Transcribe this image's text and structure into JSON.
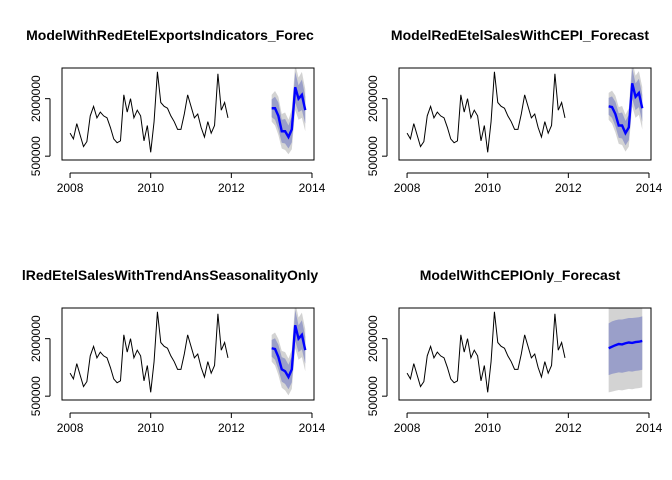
{
  "chart_data": [
    {
      "type": "line",
      "title": "ModelWithRedEtelExportsIndicators_Forec",
      "xlabel": "",
      "ylabel": "",
      "xlim": [
        2007.8,
        2014.05
      ],
      "ylim": [
        400000,
        2800000
      ],
      "x_ticks": [
        2008,
        2010,
        2012,
        2014
      ],
      "y_ticks": [
        500000,
        2000000
      ],
      "y_tick_labels": [
        "500000",
        "2000000"
      ],
      "history_start": 2008.0,
      "history_step": 0.0833333,
      "history": [
        1100000,
        950000,
        1350000,
        1050000,
        750000,
        880000,
        1550000,
        1800000,
        1500000,
        1650000,
        1550000,
        1500000,
        1250000,
        950000,
        850000,
        900000,
        2100000,
        1650000,
        2000000,
        1500000,
        1700000,
        1550000,
        900000,
        1300000,
        600000,
        1400000,
        2700000,
        1900000,
        1800000,
        1750000,
        1550000,
        1400000,
        1200000,
        1200000,
        1600000,
        2100000,
        1800000,
        1500000,
        1600000,
        1250000,
        1000000,
        1400000,
        1100000,
        1300000,
        2650000,
        1700000,
        1900000,
        1500000
      ],
      "forecast_start": 2013.0,
      "forecast_step": 0.0833333,
      "forecast": [
        1750000,
        1750000,
        1550000,
        1150000,
        1150000,
        1000000,
        1200000,
        2300000,
        2000000,
        2100000,
        1700000
      ],
      "lower80": [
        1520000,
        1450000,
        1200000,
        850000,
        830000,
        700000,
        860000,
        1900000,
        1650000,
        1700000,
        1350000
      ],
      "upper80": [
        1980000,
        2050000,
        1900000,
        1450000,
        1470000,
        1300000,
        1540000,
        2700000,
        2350000,
        2500000,
        2050000
      ],
      "lower95": [
        1400000,
        1300000,
        1050000,
        700000,
        660000,
        550000,
        680000,
        1700000,
        1450000,
        1500000,
        1150000
      ],
      "upper95": [
        2100000,
        2200000,
        2050000,
        1600000,
        1640000,
        1450000,
        1720000,
        2900000,
        2550000,
        2700000,
        2250000
      ]
    },
    {
      "type": "line",
      "title": "ModelRedEtelSalesWithCEPI_Forecast",
      "xlabel": "",
      "ylabel": "",
      "xlim": [
        2007.8,
        2014.05
      ],
      "ylim": [
        400000,
        2800000
      ],
      "x_ticks": [
        2008,
        2010,
        2012,
        2014
      ],
      "y_ticks": [
        500000,
        2000000
      ],
      "y_tick_labels": [
        "500000",
        "2000000"
      ],
      "history_start": 2008.0,
      "history_step": 0.0833333,
      "history": [
        1100000,
        950000,
        1350000,
        1050000,
        750000,
        880000,
        1550000,
        1800000,
        1500000,
        1650000,
        1550000,
        1500000,
        1250000,
        950000,
        850000,
        900000,
        2100000,
        1650000,
        2000000,
        1500000,
        1700000,
        1550000,
        900000,
        1300000,
        600000,
        1400000,
        2700000,
        1900000,
        1800000,
        1750000,
        1550000,
        1400000,
        1200000,
        1200000,
        1600000,
        2100000,
        1800000,
        1500000,
        1600000,
        1250000,
        1000000,
        1400000,
        1100000,
        1300000,
        2650000,
        1700000,
        1900000,
        1500000
      ],
      "forecast_start": 2013.0,
      "forecast_step": 0.0833333,
      "forecast": [
        1800000,
        1780000,
        1600000,
        1300000,
        1300000,
        1100000,
        1250000,
        2400000,
        2050000,
        2150000,
        1750000
      ],
      "lower80": [
        1580000,
        1500000,
        1280000,
        980000,
        960000,
        780000,
        920000,
        2000000,
        1700000,
        1780000,
        1400000
      ],
      "upper80": [
        2020000,
        2060000,
        1920000,
        1620000,
        1640000,
        1420000,
        1580000,
        2800000,
        2400000,
        2520000,
        2100000
      ],
      "lower95": [
        1450000,
        1350000,
        1120000,
        820000,
        790000,
        620000,
        750000,
        1800000,
        1500000,
        1580000,
        1200000
      ],
      "upper95": [
        2150000,
        2210000,
        2080000,
        1780000,
        1810000,
        1580000,
        1750000,
        3000000,
        2600000,
        2720000,
        2300000
      ]
    },
    {
      "type": "line",
      "title": "lRedEtelSalesWithTrendAnsSeasonalityOnly",
      "xlabel": "",
      "ylabel": "",
      "xlim": [
        2007.8,
        2014.05
      ],
      "ylim": [
        400000,
        2800000
      ],
      "x_ticks": [
        2008,
        2010,
        2012,
        2014
      ],
      "y_ticks": [
        500000,
        2000000
      ],
      "y_tick_labels": [
        "500000",
        "2000000"
      ],
      "history_start": 2008.0,
      "history_step": 0.0833333,
      "history": [
        1100000,
        950000,
        1350000,
        1050000,
        750000,
        880000,
        1550000,
        1800000,
        1500000,
        1650000,
        1550000,
        1500000,
        1250000,
        950000,
        850000,
        900000,
        2100000,
        1650000,
        2000000,
        1500000,
        1700000,
        1550000,
        900000,
        1300000,
        600000,
        1400000,
        2700000,
        1900000,
        1800000,
        1750000,
        1550000,
        1400000,
        1200000,
        1200000,
        1600000,
        2100000,
        1800000,
        1500000,
        1600000,
        1250000,
        1000000,
        1400000,
        1100000,
        1300000,
        2650000,
        1700000,
        1900000,
        1500000
      ],
      "forecast_start": 2013.0,
      "forecast_step": 0.0833333,
      "forecast": [
        1750000,
        1730000,
        1520000,
        1200000,
        1150000,
        1000000,
        1200000,
        2350000,
        2000000,
        2100000,
        1700000
      ],
      "lower80": [
        1530000,
        1450000,
        1200000,
        880000,
        820000,
        680000,
        860000,
        1950000,
        1650000,
        1720000,
        1350000
      ],
      "upper80": [
        1970000,
        2010000,
        1840000,
        1520000,
        1480000,
        1320000,
        1540000,
        2750000,
        2350000,
        2480000,
        2050000
      ],
      "lower95": [
        1400000,
        1300000,
        1050000,
        720000,
        650000,
        520000,
        690000,
        1750000,
        1450000,
        1520000,
        1150000
      ],
      "upper95": [
        2100000,
        2160000,
        1990000,
        1680000,
        1650000,
        1480000,
        1710000,
        2950000,
        2550000,
        2680000,
        2250000
      ]
    },
    {
      "type": "line",
      "title": "ModelWithCEPIOnly_Forecast",
      "xlabel": "",
      "ylabel": "",
      "xlim": [
        2007.8,
        2014.05
      ],
      "ylim": [
        400000,
        2800000
      ],
      "x_ticks": [
        2008,
        2010,
        2012,
        2014
      ],
      "y_ticks": [
        500000,
        2000000
      ],
      "y_tick_labels": [
        "500000",
        "2000000"
      ],
      "history_start": 2008.0,
      "history_step": 0.0833333,
      "history": [
        1100000,
        950000,
        1350000,
        1050000,
        750000,
        880000,
        1550000,
        1800000,
        1500000,
        1650000,
        1550000,
        1500000,
        1250000,
        950000,
        850000,
        900000,
        2100000,
        1650000,
        2000000,
        1500000,
        1700000,
        1550000,
        900000,
        1300000,
        600000,
        1400000,
        2700000,
        1900000,
        1800000,
        1750000,
        1550000,
        1400000,
        1200000,
        1200000,
        1600000,
        2100000,
        1800000,
        1500000,
        1600000,
        1250000,
        1000000,
        1400000,
        1100000,
        1300000,
        2650000,
        1700000,
        1900000,
        1500000
      ],
      "forecast_start": 2013.0,
      "forecast_step": 0.0833333,
      "forecast": [
        1750000,
        1790000,
        1830000,
        1860000,
        1850000,
        1880000,
        1900000,
        1890000,
        1910000,
        1920000,
        1940000
      ],
      "lower80": [
        1050000,
        1080000,
        1100000,
        1120000,
        1110000,
        1130000,
        1150000,
        1140000,
        1160000,
        1170000,
        1190000
      ],
      "upper80": [
        2400000,
        2450000,
        2480000,
        2500000,
        2500000,
        2520000,
        2540000,
        2540000,
        2550000,
        2560000,
        2580000
      ],
      "lower95": [
        600000,
        620000,
        640000,
        660000,
        650000,
        670000,
        690000,
        680000,
        700000,
        710000,
        730000
      ],
      "upper95": [
        2880000,
        2920000,
        2950000,
        2970000,
        2970000,
        2990000,
        3010000,
        3000000,
        3020000,
        3030000,
        3050000
      ]
    }
  ],
  "colors": {
    "history": "#000000",
    "forecast": "#0000ff",
    "band80": "#9a9fc9",
    "band95": "#d3d3d3"
  }
}
